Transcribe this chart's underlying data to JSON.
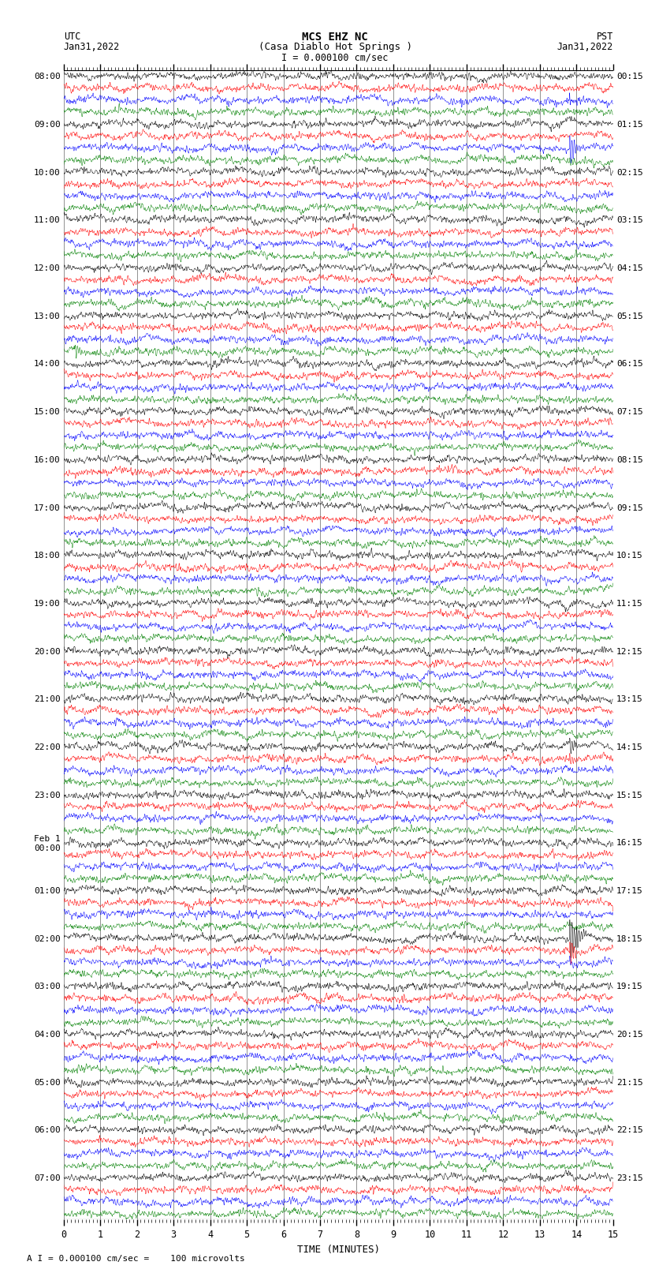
{
  "title_line1": "MCS EHZ NC",
  "title_line2": "(Casa Diablo Hot Springs )",
  "scale_label": "I = 0.000100 cm/sec",
  "left_label_top": "UTC",
  "left_label_date": "Jan31,2022",
  "right_label_top": "PST",
  "right_label_date": "Jan31,2022",
  "bottom_label": "TIME (MINUTES)",
  "footnote": "A I = 0.000100 cm/sec =    100 microvolts",
  "utc_labels": [
    "08:00",
    "09:00",
    "10:00",
    "11:00",
    "12:00",
    "13:00",
    "14:00",
    "15:00",
    "16:00",
    "17:00",
    "18:00",
    "19:00",
    "20:00",
    "21:00",
    "22:00",
    "23:00",
    "Feb 1\n00:00",
    "01:00",
    "02:00",
    "03:00",
    "04:00",
    "05:00",
    "06:00",
    "07:00"
  ],
  "pst_labels": [
    "00:15",
    "01:15",
    "02:15",
    "03:15",
    "04:15",
    "05:15",
    "06:15",
    "07:15",
    "08:15",
    "09:15",
    "10:15",
    "11:15",
    "12:15",
    "13:15",
    "14:15",
    "15:15",
    "16:15",
    "17:15",
    "18:15",
    "19:15",
    "20:15",
    "21:15",
    "22:15",
    "23:15"
  ],
  "n_groups": 24,
  "traces_per_group": 4,
  "row_colors": [
    "black",
    "red",
    "blue",
    "green"
  ],
  "minutes": 15,
  "bg_color": "white",
  "grid_color": "#808080",
  "amplitude": 0.28,
  "fig_width": 8.5,
  "fig_height": 16.13,
  "dpi": 100
}
